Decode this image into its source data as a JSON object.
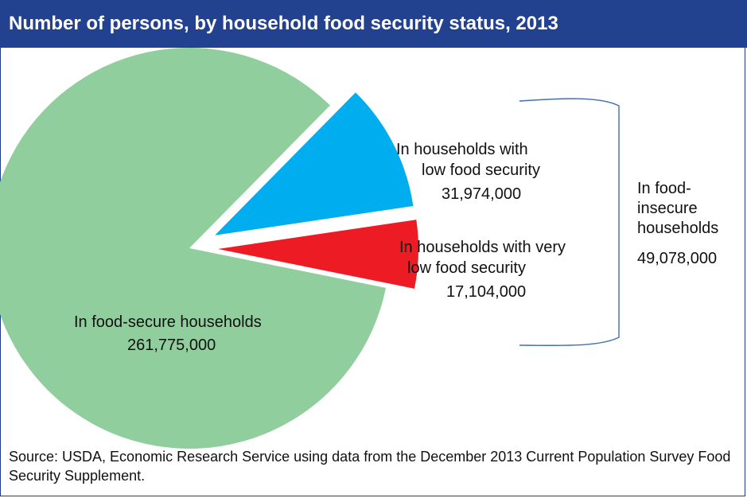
{
  "header": {
    "title": "Number of persons, by household food security status, 2013"
  },
  "colors": {
    "title_bg": "#22418e",
    "secure": "#90ce9d",
    "low": "#00aeef",
    "very_low": "#ed1c24",
    "bracket": "#3f6fb3"
  },
  "chart_data": {
    "type": "pie",
    "title": "Number of persons, by household food security status, 2013",
    "slices": [
      {
        "label_lines": [
          "In food-secure households"
        ],
        "value": 261775000,
        "value_text": "261,775,000",
        "color": "#90ce9d",
        "exploded": false
      },
      {
        "label_lines": [
          "In households with",
          "low food security"
        ],
        "value": 31974000,
        "value_text": "31,974,000",
        "color": "#00aeef",
        "exploded": true
      },
      {
        "label_lines": [
          "In households with very",
          "low food security"
        ],
        "value": 17104000,
        "value_text": "17,104,000",
        "color": "#ed1c24",
        "exploded": true
      }
    ],
    "group_annotation": {
      "label_lines": [
        "In food-",
        "insecure",
        "households"
      ],
      "value": 49078000,
      "value_text": "49,078,000"
    }
  },
  "source": "Source: USDA, Economic Research Service using data from the December 2013 Current Population Survey Food Security Supplement."
}
